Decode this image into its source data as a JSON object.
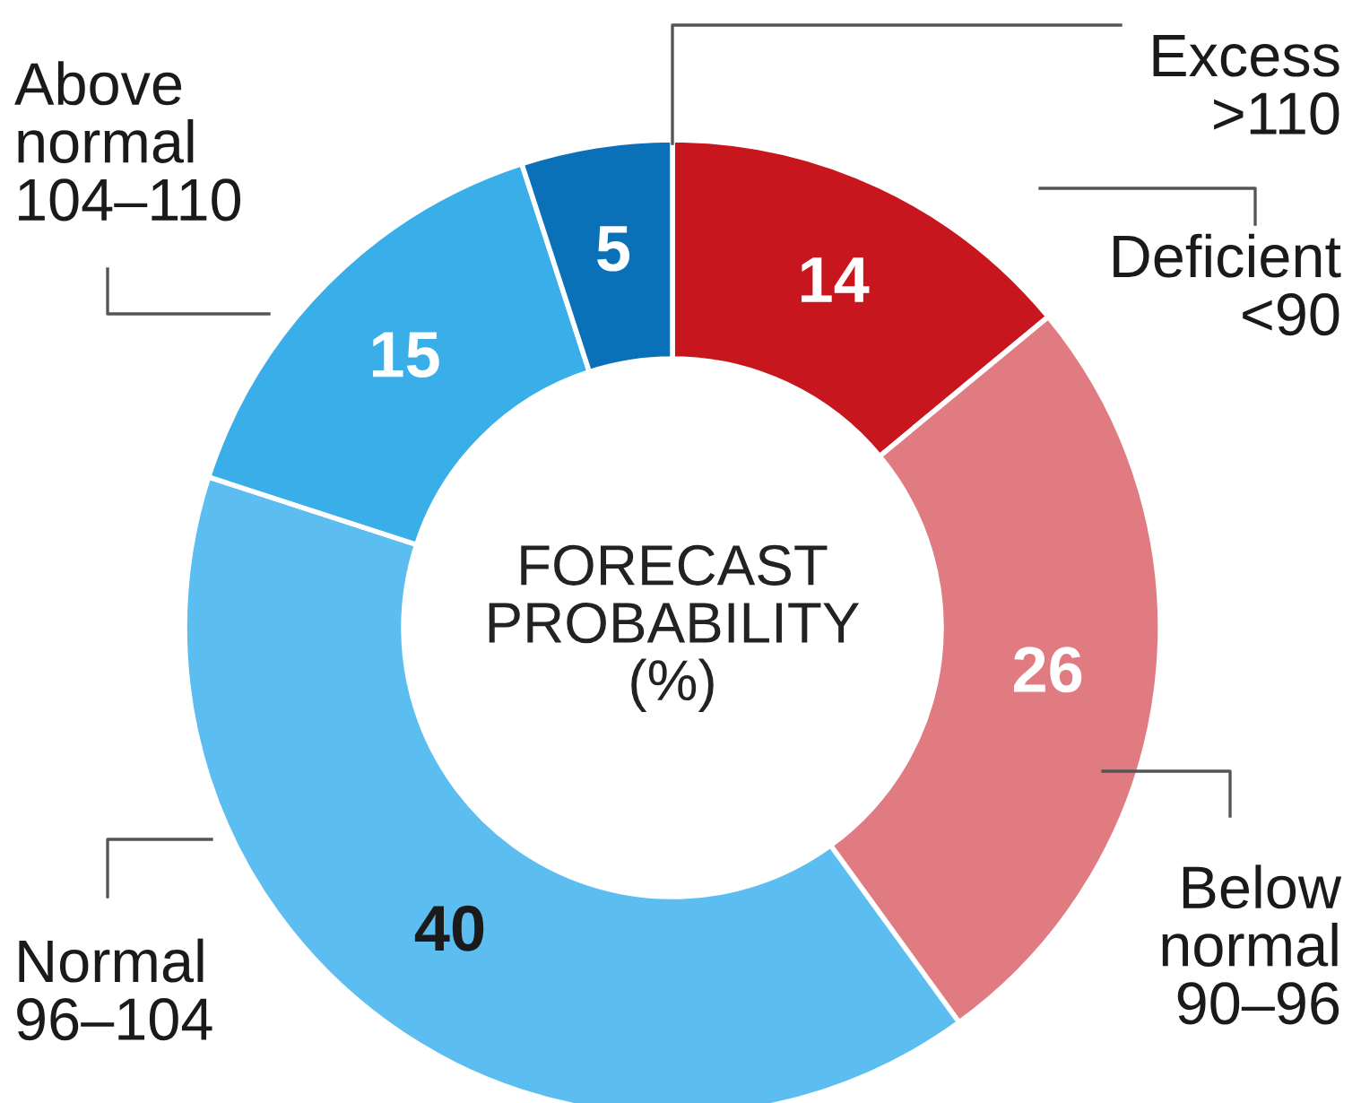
{
  "chart_data": {
    "type": "donut",
    "title": "FORECAST\nPROBABILITY\n(%)",
    "categories": [
      "Deficient\n<90",
      "Below\nnormal\n90–96",
      "Normal\n96–104",
      "Above\nnormal\n104–110",
      "Excess\n>110"
    ],
    "values": [
      14,
      26,
      40,
      15,
      5
    ],
    "colors": [
      "#c8161e",
      "#e07b82",
      "#5cbdf0",
      "#3aaee8",
      "#0a70b8"
    ],
    "data_labels": true,
    "legend": false
  }
}
